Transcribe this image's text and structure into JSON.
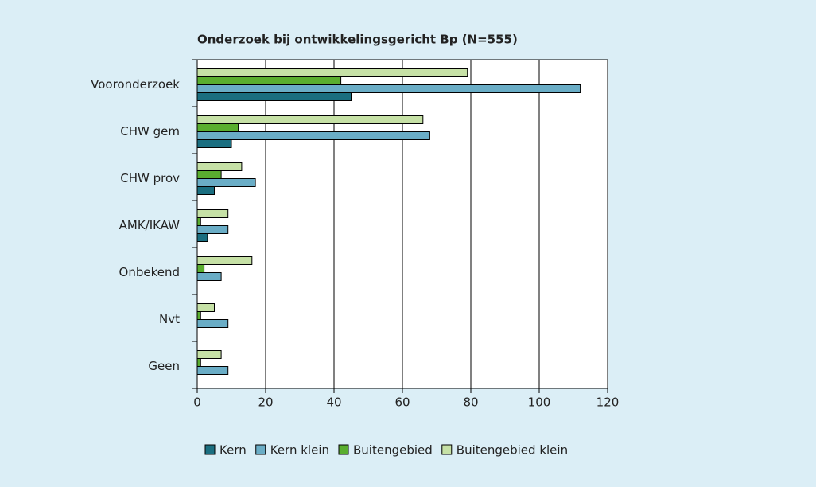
{
  "chart_data": {
    "type": "hbar",
    "title": "Onderzoek bij ontwikkelingsgericht Bp (N=555)",
    "categories": [
      "Vooronderzoek",
      "CHW gem",
      "CHW prov",
      "AMK/IKAW",
      "Onbekend",
      "Nvt",
      "Geen"
    ],
    "series": [
      {
        "name": "Kern",
        "color": "#1a6e80",
        "values": [
          45,
          10,
          5,
          3,
          0,
          0,
          0
        ]
      },
      {
        "name": "Kern klein",
        "color": "#6aadc6",
        "values": [
          112,
          68,
          17,
          9,
          7,
          9,
          9
        ]
      },
      {
        "name": "Buitengebied",
        "color": "#5aae2f",
        "values": [
          42,
          12,
          7,
          1,
          2,
          1,
          1
        ]
      },
      {
        "name": "Buitengebied klein",
        "color": "#c6e1a6",
        "values": [
          79,
          66,
          13,
          9,
          16,
          5,
          7
        ]
      }
    ],
    "xlim": [
      0,
      120
    ],
    "xticks": [
      0,
      20,
      40,
      60,
      80,
      100,
      120
    ],
    "grid": true,
    "legend": "bottom"
  }
}
